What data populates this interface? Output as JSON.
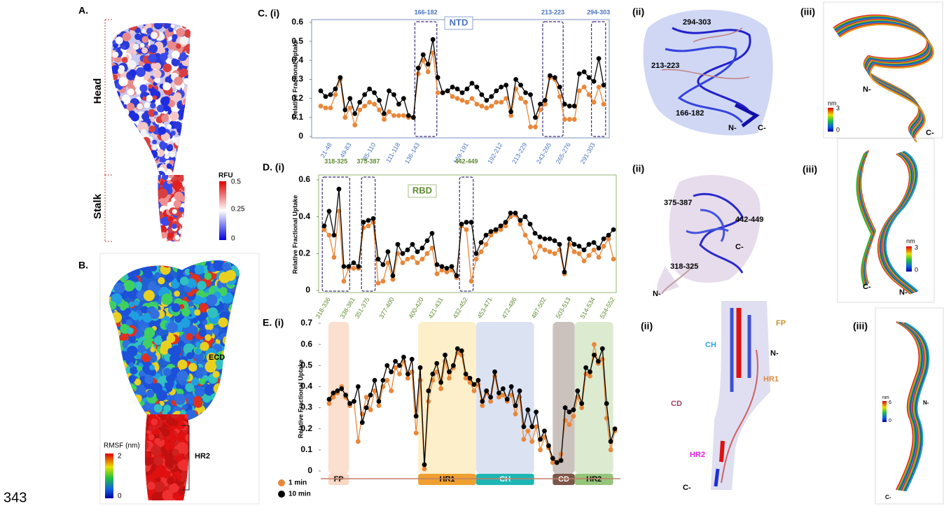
{
  "panel_a": {
    "label": "A.",
    "regions": [
      "Head",
      "Stalk"
    ],
    "colorbar": {
      "title": "RFU",
      "ticks": [
        0.5,
        0.25,
        0
      ]
    }
  },
  "panel_b": {
    "label": "B.",
    "annotations": [
      "ECD",
      "HR2"
    ],
    "colorbar": {
      "title": "RMSF (nm)",
      "ticks": [
        2,
        0
      ]
    }
  },
  "chart_data": [
    {
      "type": "line",
      "label": "C. (i)",
      "domain": "NTD",
      "ylabel": "Relative Fractional Uptake",
      "frame_color": "#8fa3cc",
      "label_color": "#4a72c0",
      "categories": [
        null,
        null,
        "21-48",
        null,
        null,
        null,
        "49-83",
        null,
        null,
        null,
        null,
        "85-110",
        null,
        null,
        null,
        null,
        "111-118",
        null,
        null,
        null,
        "136-143",
        null,
        null,
        null,
        null,
        null,
        null,
        null,
        null,
        null,
        "169-191",
        null,
        null,
        null,
        null,
        null,
        null,
        "192-212",
        null,
        null,
        null,
        null,
        "213-229",
        null,
        null,
        null,
        null,
        "243-265",
        null,
        null,
        null,
        "265-276",
        null,
        null,
        null,
        null,
        "291-303",
        null,
        null
      ],
      "highlights": [
        "166-182",
        "213-223",
        "294-303"
      ],
      "series": [
        {
          "color": "#e8873a",
          "values": [
            0.16,
            0.15,
            0.15,
            0.22,
            0.3,
            0.1,
            0.15,
            0.06,
            0.14,
            0.16,
            0.18,
            0.17,
            0.14,
            0.09,
            0.13,
            0.11,
            0.11,
            0.11,
            0.1,
            0.1,
            0.33,
            0.4,
            0.34,
            0.44,
            0.23,
            0.23,
            0.24,
            0.21,
            0.2,
            0.19,
            0.18,
            0.2,
            0.17,
            0.16,
            0.15,
            0.16,
            0.18,
            0.18,
            0.2,
            0.11,
            0.25,
            0.2,
            0.18,
            0.05,
            0.05,
            0.14,
            0.17,
            0.31,
            0.3,
            0.21,
            0.09,
            0.09,
            0.09,
            0.24,
            0.26,
            0.22,
            0.18,
            0.26,
            0.17
          ]
        },
        {
          "color": "#000000",
          "values": [
            0.24,
            0.21,
            0.22,
            0.25,
            0.31,
            0.14,
            0.2,
            0.12,
            0.18,
            0.22,
            0.25,
            0.23,
            0.19,
            0.12,
            0.24,
            0.22,
            0.17,
            0.2,
            0.11,
            0.1,
            0.36,
            0.43,
            0.38,
            0.51,
            0.31,
            0.23,
            0.24,
            0.26,
            0.25,
            0.23,
            0.25,
            0.28,
            0.26,
            0.22,
            0.19,
            0.21,
            0.24,
            0.26,
            0.27,
            0.13,
            0.3,
            0.27,
            0.23,
            0.22,
            0.1,
            0.17,
            0.19,
            0.32,
            0.31,
            0.26,
            0.17,
            0.16,
            0.16,
            0.33,
            0.34,
            0.31,
            0.29,
            0.41,
            0.27
          ]
        }
      ],
      "ylim": [
        0,
        0.6
      ],
      "yticks": [
        0,
        0.1,
        0.2,
        0.3,
        0.4,
        0.5,
        0.6
      ]
    },
    {
      "type": "line",
      "label": "D. (i)",
      "domain": "RBD",
      "ylabel": "Relative Fractional Uptake",
      "frame_color": "#a8c08a",
      "label_color": "#5e8c30",
      "categories": [
        null,
        "318-336",
        null,
        null,
        null,
        null,
        "338-361",
        null,
        null,
        "351-375",
        null,
        null,
        null,
        null,
        "377-400",
        null,
        null,
        null,
        null,
        null,
        "400-420",
        null,
        null,
        null,
        "421-431",
        null,
        null,
        null,
        null,
        "432-452",
        null,
        null,
        null,
        null,
        "453-471",
        null,
        null,
        null,
        null,
        "472-486",
        null,
        null,
        null,
        null,
        null,
        "487-502",
        null,
        null,
        null,
        null,
        "503-513",
        null,
        null,
        null,
        null,
        "514-534",
        null,
        null,
        null,
        "534-552"
      ],
      "highlights": [
        "318-325",
        "375-387",
        "442-449"
      ],
      "series": [
        {
          "color": "#e8873a",
          "values": [
            0.33,
            0.3,
            0.18,
            0.43,
            0.05,
            0.12,
            0.12,
            0.12,
            0.34,
            0.35,
            0.37,
            0.04,
            0.05,
            0.15,
            0.06,
            0.2,
            0.15,
            0.17,
            0.18,
            0.15,
            0.17,
            0.2,
            0.23,
            0.09,
            0.11,
            0.1,
            0.11,
            0.07,
            0.35,
            0.33,
            0.05,
            0.17,
            0.21,
            0.25,
            0.3,
            0.32,
            0.33,
            0.35,
            0.4,
            0.41,
            0.36,
            0.3,
            0.26,
            0.18,
            0.24,
            0.22,
            0.21,
            0.2,
            0.22,
            0.09,
            0.25,
            0.21,
            0.2,
            0.16,
            0.19,
            0.22,
            0.18,
            0.24,
            0.28,
            0.17
          ]
        },
        {
          "color": "#000000",
          "values": [
            0.35,
            0.43,
            0.3,
            0.55,
            0.13,
            0.13,
            0.15,
            0.13,
            0.37,
            0.38,
            0.39,
            0.17,
            0.14,
            0.21,
            0.08,
            0.25,
            0.2,
            0.22,
            0.25,
            0.21,
            0.23,
            0.27,
            0.31,
            0.14,
            0.13,
            0.12,
            0.13,
            0.08,
            0.36,
            0.37,
            0.37,
            0.2,
            0.26,
            0.3,
            0.32,
            0.33,
            0.35,
            0.37,
            0.42,
            0.42,
            0.38,
            0.4,
            0.36,
            0.31,
            0.29,
            0.28,
            0.28,
            0.27,
            0.25,
            0.1,
            0.28,
            0.25,
            0.24,
            0.22,
            0.25,
            0.26,
            0.23,
            0.28,
            0.3,
            0.33
          ]
        }
      ],
      "ylim": [
        0,
        0.6
      ],
      "yticks": [
        0,
        0.2,
        0.4,
        0.6
      ]
    },
    {
      "type": "line",
      "label": "E. (i)",
      "ylabel": "Relative Fractional Uptake",
      "frame_color": "#c0806a",
      "domains": [
        {
          "label": "FP",
          "band_color": "#fbe0cf",
          "tag_color": "#f9d8c4",
          "text_color": "#000000"
        },
        {
          "label": "HR1",
          "band_color": "#fdefc9",
          "tag_color": "#f0a030",
          "text_color": "#000000"
        },
        {
          "label": "CH",
          "band_color": "#dbe3f3",
          "tag_color": "#1fb5b5",
          "text_color": "#ffffff"
        },
        {
          "label": "CD",
          "band_color": "#cbc2be",
          "tag_color": "#7a5548",
          "text_color": "#ffffff"
        },
        {
          "label": "HR2",
          "band_color": "#dcebd0",
          "tag_color": "#96c47a",
          "text_color": "#000000"
        }
      ],
      "series": [
        {
          "name": "1 min",
          "color": "#e8873a",
          "values": [
            0.32,
            0.35,
            0.37,
            0.4,
            0.35,
            0.31,
            0.33,
            0.14,
            0.27,
            0.35,
            0.29,
            0.38,
            0.31,
            0.4,
            0.43,
            0.38,
            0.49,
            0.46,
            0.52,
            0.44,
            0.47,
            0.18,
            0.43,
            0.01,
            0.33,
            0.43,
            0.47,
            0.39,
            0.52,
            0.44,
            0.49,
            0.56,
            0.55,
            0.44,
            0.42,
            0.38,
            0.41,
            0.31,
            0.37,
            0.33,
            0.45,
            0.35,
            0.36,
            0.33,
            0.36,
            0.27,
            0.35,
            0.15,
            0.19,
            0.14,
            0.21,
            0.1,
            0.16,
            0.11,
            0.04,
            0.04,
            0.08,
            0.24,
            0.22,
            0.26,
            0.35,
            0.3,
            0.46,
            0.45,
            0.6,
            0.51,
            0.53,
            0.25,
            0.1,
            0.19
          ]
        },
        {
          "name": "10 min",
          "color": "#000000",
          "values": [
            0.34,
            0.37,
            0.38,
            0.39,
            0.36,
            0.32,
            0.33,
            0.4,
            0.23,
            0.3,
            0.36,
            0.43,
            0.33,
            0.43,
            0.5,
            0.47,
            0.52,
            0.5,
            0.54,
            0.46,
            0.53,
            0.26,
            0.49,
            0.03,
            0.38,
            0.46,
            0.51,
            0.42,
            0.55,
            0.47,
            0.5,
            0.58,
            0.57,
            0.46,
            0.44,
            0.41,
            0.43,
            0.33,
            0.38,
            0.35,
            0.47,
            0.37,
            0.39,
            0.34,
            0.4,
            0.31,
            0.38,
            0.21,
            0.29,
            0.21,
            0.28,
            0.15,
            0.19,
            0.12,
            0.06,
            0.04,
            0.05,
            0.3,
            0.28,
            0.29,
            0.38,
            0.32,
            0.49,
            0.47,
            0.55,
            0.52,
            0.58,
            0.32,
            0.14,
            0.2
          ]
        }
      ],
      "ylim": [
        0,
        0.7
      ],
      "yticks": [
        0,
        0.1,
        0.2,
        0.3,
        0.4,
        0.5,
        0.6,
        0.7
      ]
    }
  ],
  "structures": {
    "c_ii": {
      "label": "(ii)",
      "annotations": [
        "294-303",
        "213-223",
        "166-182",
        "N-",
        "C-"
      ]
    },
    "c_iii": {
      "label": "(iii)",
      "colorbar": {
        "title": "nm",
        "ticks": [
          3,
          0
        ]
      },
      "annotations": [
        "N-",
        "C-"
      ]
    },
    "d_ii": {
      "label": "(ii)",
      "annotations": [
        "375-387",
        "442-449",
        "C-",
        "318-325",
        "N-"
      ]
    },
    "d_iii": {
      "label": "(iii)",
      "colorbar": {
        "title": "nm",
        "ticks": [
          3,
          0
        ]
      },
      "annotations": [
        "C-",
        "N-"
      ]
    },
    "e_ii": {
      "label": "(ii)",
      "annotations": [
        "FP",
        "CH",
        "N-",
        "HR1",
        "CD",
        "HR2",
        "C-"
      ]
    },
    "e_iii": {
      "label": "(iii)",
      "colorbar": {
        "title": "nm",
        "ticks": [
          6,
          0
        ]
      },
      "annotations": [
        "N-",
        "C-"
      ]
    }
  },
  "page_number": "343"
}
